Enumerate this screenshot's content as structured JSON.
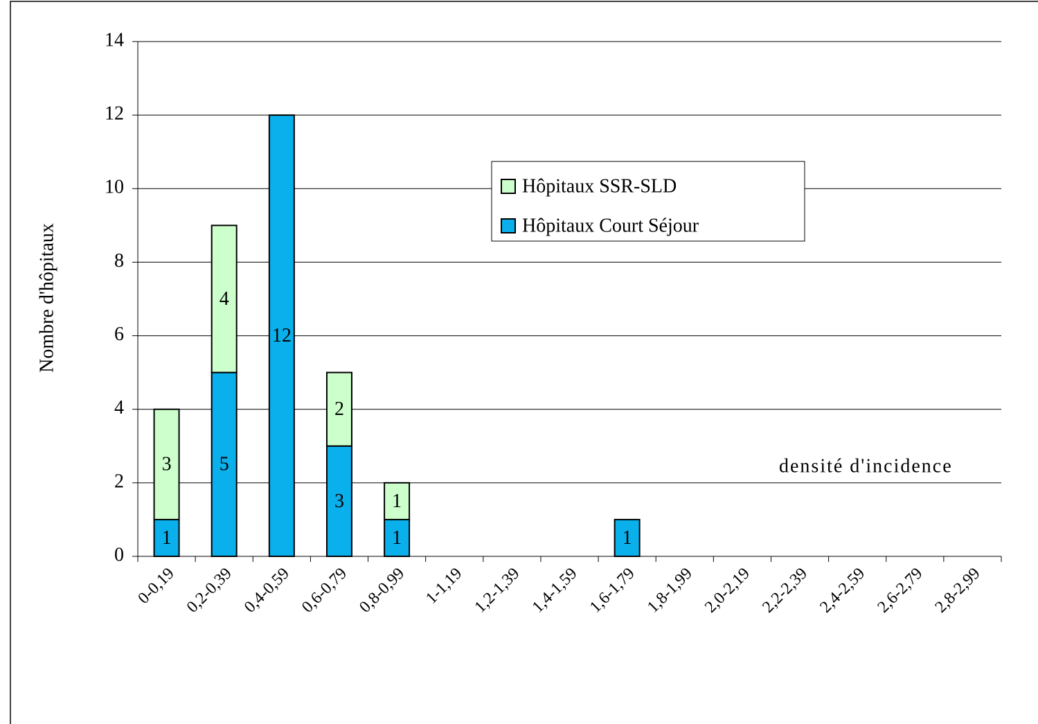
{
  "chart_data": {
    "type": "stacked_bar",
    "y_label": "Nombre d'hôpitaux",
    "annotation": "densité d'incidence",
    "categories": [
      "0-0,19",
      "0,2-0,39",
      "0,4-0,59",
      "0,6-0,79",
      "0,8-0,99",
      "1-1,19",
      "1,2-1,39",
      "1,4-1,59",
      "1,6-1,79",
      "1,8-1,99",
      "2,0-2,19",
      "2,2-2,39",
      "2,4-2,59",
      "2,6-2,79",
      "2,8-2,99"
    ],
    "series": [
      {
        "name": "Hôpitaux Court Séjour",
        "color": "#0ab0ec",
        "values": [
          1,
          5,
          12,
          3,
          1,
          null,
          null,
          null,
          1,
          null,
          null,
          null,
          null,
          null,
          null
        ]
      },
      {
        "name": "Hôpitaux SSR-SLD",
        "color": "#ccffcc",
        "values": [
          3,
          4,
          null,
          2,
          1,
          null,
          null,
          null,
          null,
          null,
          null,
          null,
          null,
          null,
          null
        ]
      }
    ],
    "ylim": [
      0,
      14
    ],
    "yticks": [
      0,
      2,
      4,
      6,
      8,
      10,
      12,
      14
    ],
    "grid": true
  }
}
